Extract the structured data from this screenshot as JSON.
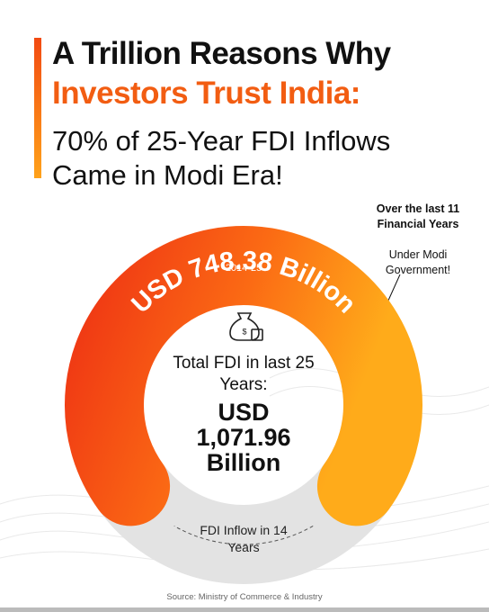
{
  "chart_data": {
    "type": "donut",
    "title": "A Trillion Reasons Why",
    "title_highlight": "Investors Trust India:",
    "subtitle": "70% of 25-Year FDI Inflows Came in Modi Era!",
    "categories": [
      "2014-25",
      "FDI Inflow in 14 Years"
    ],
    "values": [
      748.38,
      323.58
    ],
    "value_labels": [
      "USD 748.38 Billion",
      null
    ],
    "colors": [
      "url(#og)",
      "#e3e3e3"
    ],
    "center_text": "Total FDI in last 25 Years:",
    "total": 1071.96,
    "total_label": "USD 1,071.96 Billion",
    "annotation": "Over the last 11 Financial Years",
    "annotation_note": "Under Modi Government!",
    "source": "Source: Ministry of Commerce & Industry"
  }
}
